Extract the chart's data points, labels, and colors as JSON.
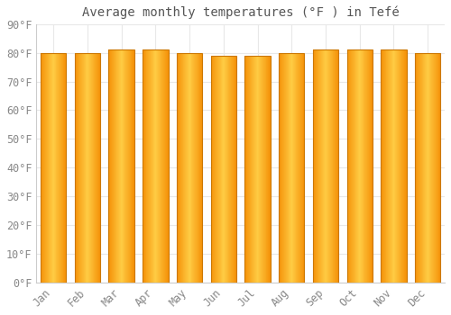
{
  "title": "Average monthly temperatures (°F ) in Tefé",
  "months": [
    "Jan",
    "Feb",
    "Mar",
    "Apr",
    "May",
    "Jun",
    "Jul",
    "Aug",
    "Sep",
    "Oct",
    "Nov",
    "Dec"
  ],
  "values": [
    80,
    80,
    81,
    81,
    80,
    79,
    79,
    80,
    81,
    81,
    81,
    80
  ],
  "ylim": [
    0,
    90
  ],
  "yticks": [
    0,
    10,
    20,
    30,
    40,
    50,
    60,
    70,
    80,
    90
  ],
  "ytick_labels": [
    "0°F",
    "10°F",
    "20°F",
    "30°F",
    "40°F",
    "50°F",
    "60°F",
    "70°F",
    "80°F",
    "90°F"
  ],
  "bar_color_center": "#FFCC44",
  "bar_color_edge": "#F5930A",
  "bar_edge_color": "#CC7700",
  "background_color": "#FFFFFF",
  "grid_color": "#E8E8E8",
  "title_fontsize": 10,
  "tick_fontsize": 8.5,
  "tick_label_color": "#888888",
  "title_color": "#555555"
}
